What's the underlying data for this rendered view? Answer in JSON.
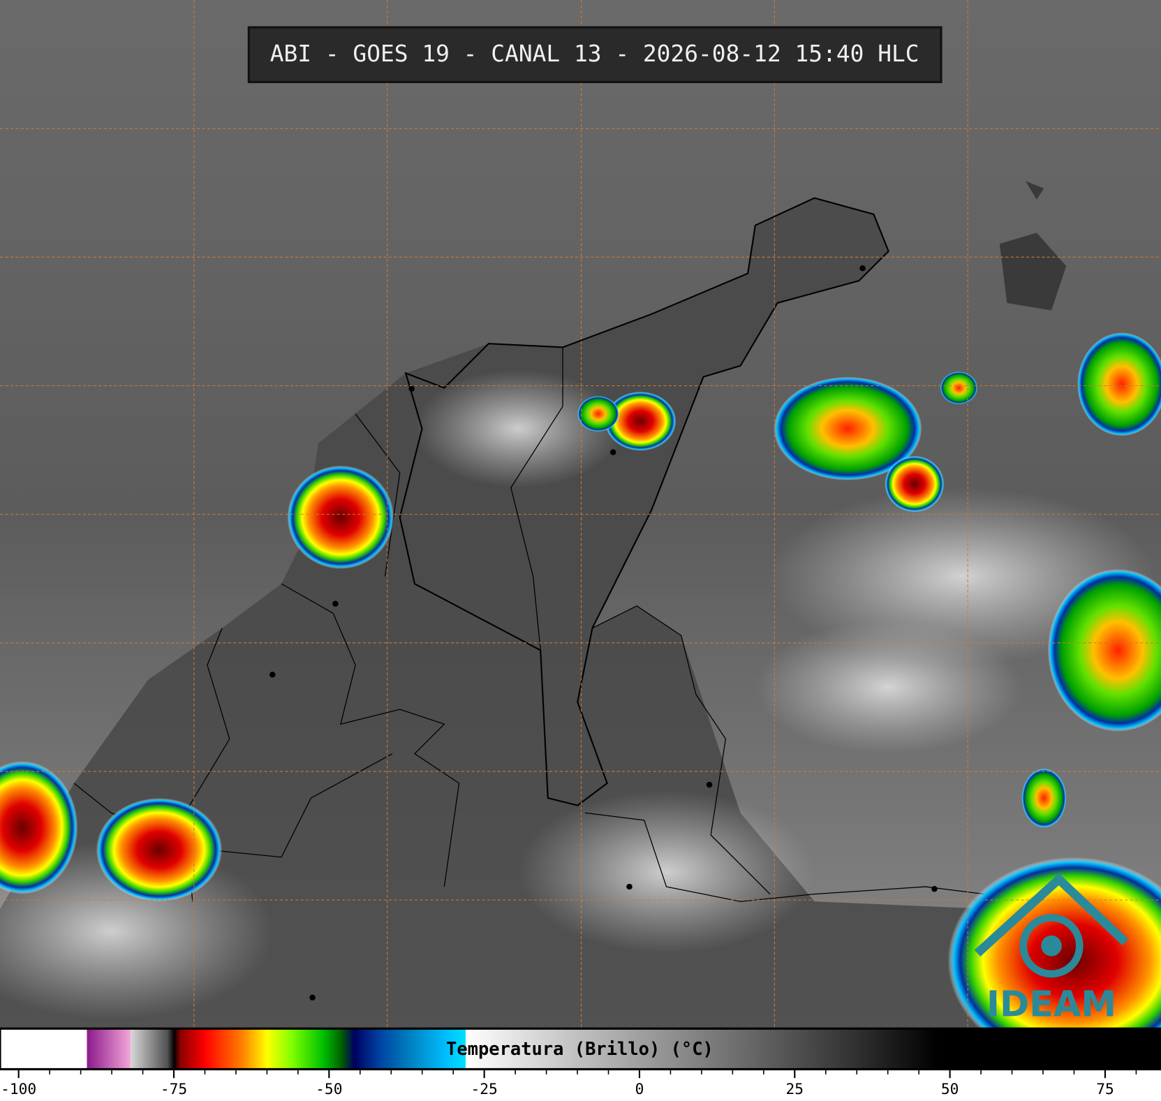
{
  "title": "ABI - GOES 19 - CANAL 13 - 2026-08-12 15:40 HLC",
  "logo": "IDEAM",
  "colorbar": {
    "label": "Temperatura (Brillo) (°C)",
    "xlim": [
      -103,
      84
    ],
    "ticks": [
      -100,
      -75,
      -50,
      -25,
      0,
      25,
      50,
      75
    ],
    "minor_ticks": [
      -95,
      -90,
      -85,
      -80,
      -70,
      -65,
      -60,
      -55,
      -45,
      -40,
      -35,
      -30,
      -20,
      -15,
      -10,
      -5,
      5,
      10,
      15,
      20,
      30,
      35,
      40,
      45,
      55,
      60,
      65,
      70,
      80
    ],
    "colormap": [
      {
        "value": -103,
        "color": "#ffffff"
      },
      {
        "value": -89,
        "color": "#ffffff"
      },
      {
        "value": -89,
        "color": "#8b1a8b"
      },
      {
        "value": -82,
        "color": "#f4a6d8"
      },
      {
        "value": -82,
        "color": "#d8d8d8"
      },
      {
        "value": -76,
        "color": "#505050"
      },
      {
        "value": -75,
        "color": "#000000"
      },
      {
        "value": -74,
        "color": "#8b0000"
      },
      {
        "value": -70,
        "color": "#ff0000"
      },
      {
        "value": -64,
        "color": "#ff8000"
      },
      {
        "value": -60,
        "color": "#ffff00"
      },
      {
        "value": -56,
        "color": "#80ff00"
      },
      {
        "value": -51,
        "color": "#00c000"
      },
      {
        "value": -48,
        "color": "#006000"
      },
      {
        "value": -46,
        "color": "#000060"
      },
      {
        "value": -42,
        "color": "#0040a0"
      },
      {
        "value": -37,
        "color": "#0080c0"
      },
      {
        "value": -31,
        "color": "#00c0ff"
      },
      {
        "value": -28,
        "color": "#00e0ff"
      },
      {
        "value": -28,
        "color": "#ffffff"
      },
      {
        "value": -10,
        "color": "#c0c0c0"
      },
      {
        "value": 15,
        "color": "#707070"
      },
      {
        "value": 35,
        "color": "#303030"
      },
      {
        "value": 48,
        "color": "#000000"
      },
      {
        "value": 84,
        "color": "#000000"
      }
    ]
  }
}
